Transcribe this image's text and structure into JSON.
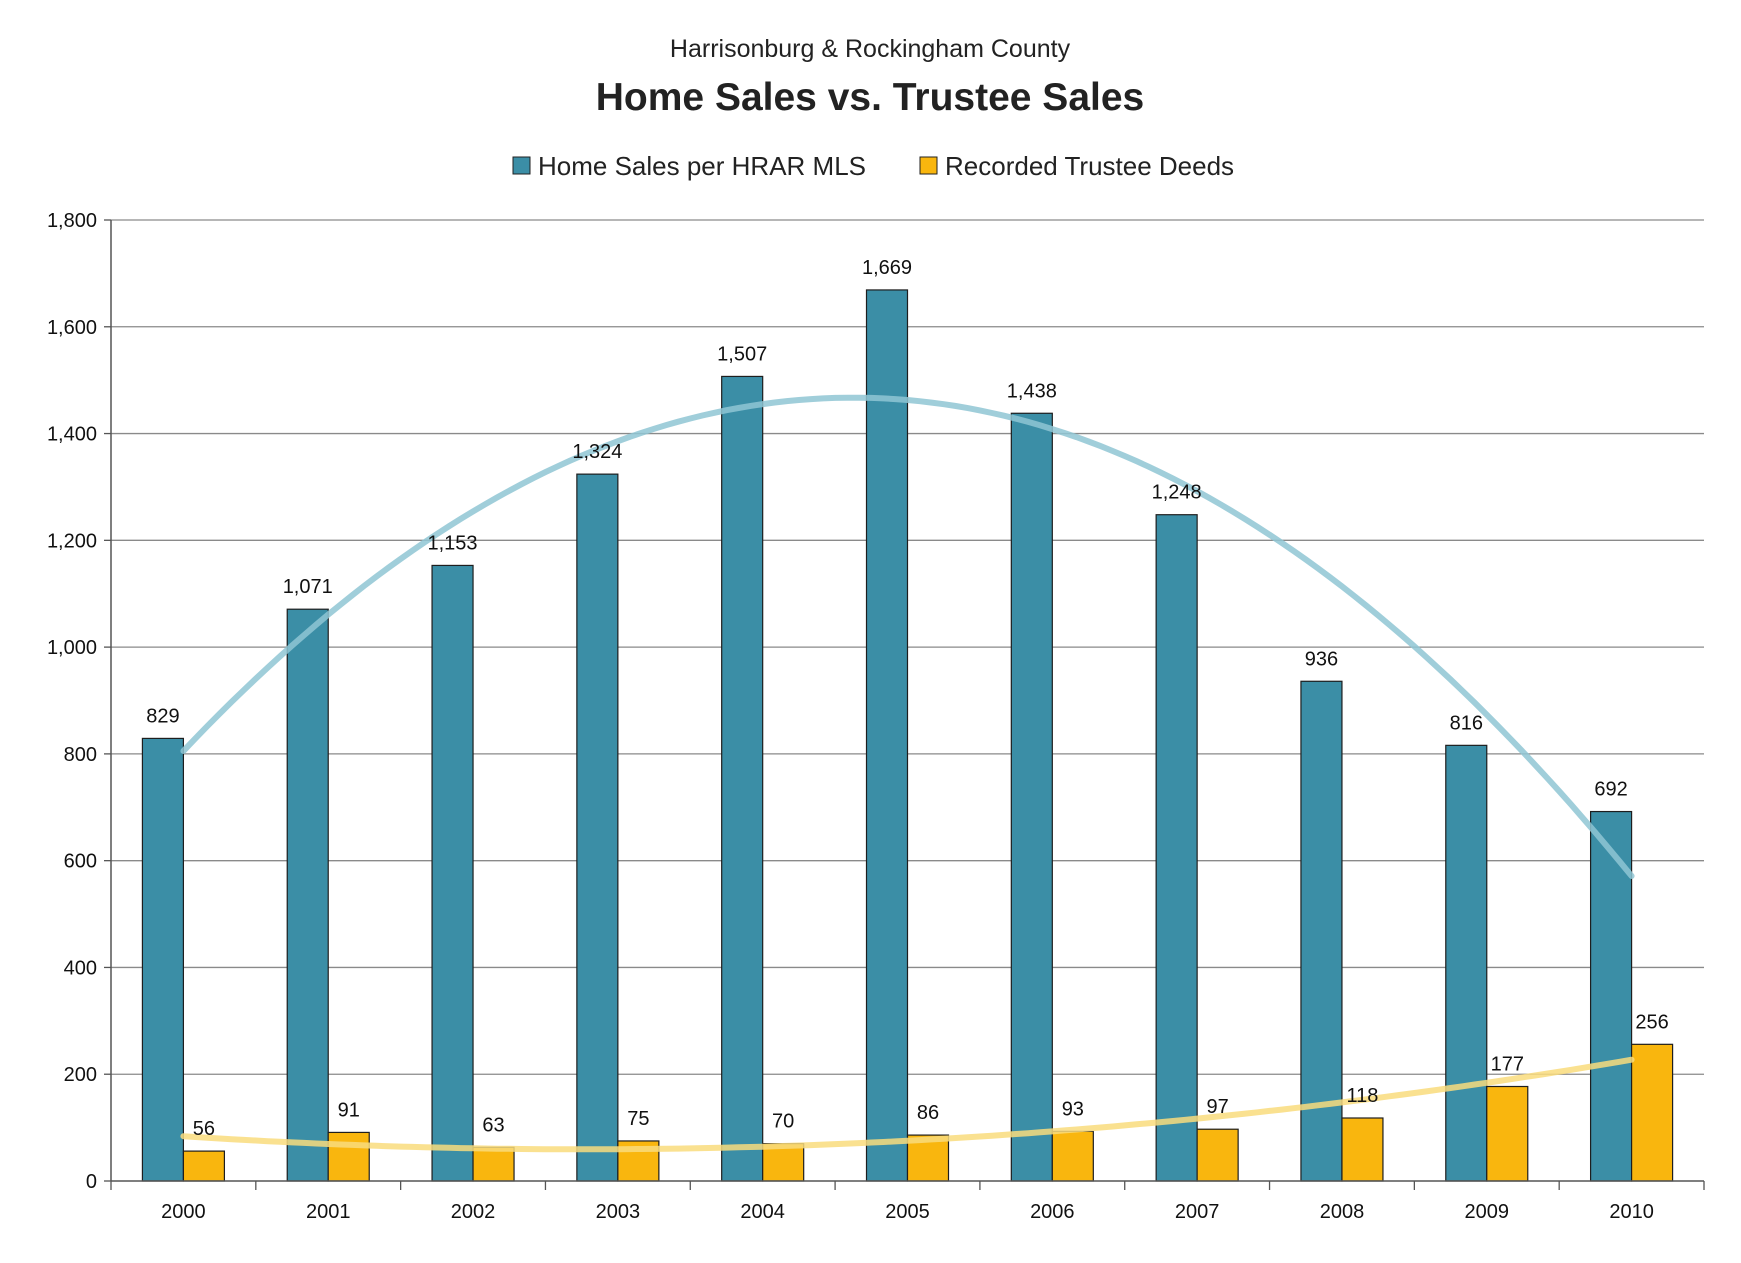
{
  "chart_data": {
    "type": "bar",
    "subtitle": "Harrisonburg & Rockingham County",
    "title": "Home Sales vs. Trustee Sales",
    "categories": [
      "2000",
      "2001",
      "2002",
      "2003",
      "2004",
      "2005",
      "2006",
      "2007",
      "2008",
      "2009",
      "2010"
    ],
    "series": [
      {
        "name": "Home Sales per HRAR MLS",
        "color": "#3b8ea6",
        "values": [
          829,
          1071,
          1153,
          1324,
          1507,
          1669,
          1438,
          1248,
          936,
          816,
          692
        ],
        "labels": [
          "829",
          "1,071",
          "1,153",
          "1,324",
          "1,507",
          "1,669",
          "1,438",
          "1,248",
          "936",
          "816",
          "692"
        ],
        "trendline": {
          "type": "polynomial",
          "color": "#8fc5d4"
        }
      },
      {
        "name": "Recorded Trustee Deeds",
        "color": "#f9b60e",
        "values": [
          56,
          91,
          63,
          75,
          70,
          86,
          93,
          97,
          118,
          177,
          256
        ],
        "labels": [
          "56",
          "91",
          "63",
          "75",
          "70",
          "86",
          "93",
          "97",
          "118",
          "177",
          "256"
        ],
        "trendline": {
          "type": "polynomial",
          "color": "#f9dc7c"
        }
      }
    ],
    "ylim": [
      0,
      1800
    ],
    "yticks": [
      0,
      200,
      400,
      600,
      800,
      1000,
      1200,
      1400,
      1600,
      1800
    ],
    "ytick_labels": [
      "0",
      "200",
      "400",
      "600",
      "800",
      "1,000",
      "1,200",
      "1,400",
      "1,600",
      "1,800"
    ],
    "grid": true,
    "legend_position": "top"
  }
}
